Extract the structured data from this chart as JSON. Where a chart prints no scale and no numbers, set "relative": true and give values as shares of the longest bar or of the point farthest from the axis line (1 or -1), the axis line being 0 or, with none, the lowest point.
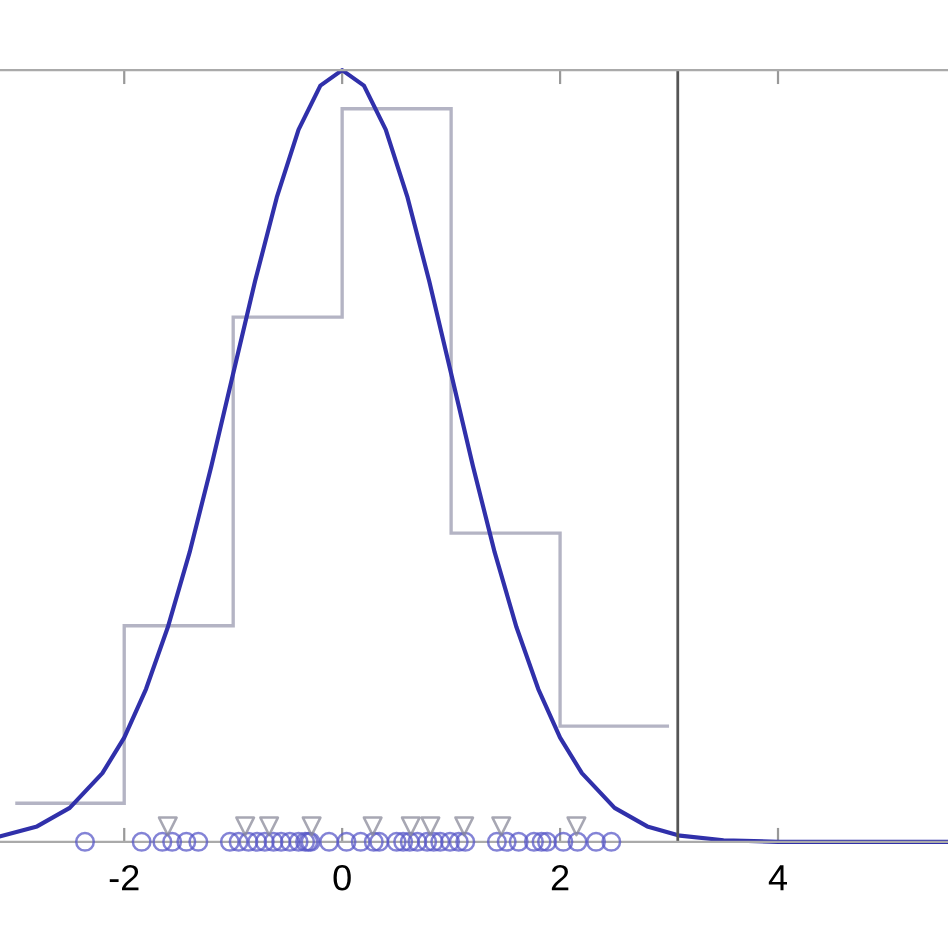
{
  "chart_data": {
    "type": "histogram",
    "relative": true,
    "bins": [
      -3,
      -2,
      -1,
      0,
      1,
      2,
      3
    ],
    "values": [
      0.05,
      0.28,
      0.68,
      0.95,
      0.4,
      0.15
    ],
    "color": "#b4b4c4",
    "xlim": [
      -3.14,
      5.56
    ],
    "xticks": [
      -2,
      0,
      2,
      4
    ],
    "tick_labels": "x",
    "grid": false,
    "ref_lines": [
      {
        "axis": "x",
        "value": 3.08,
        "color": "#555555"
      }
    ],
    "series": [
      {
        "type": "line",
        "color": "#3030aa",
        "line_style": "solid",
        "marker": "none",
        "x": [
          -3.14,
          -2.8,
          -2.5,
          -2.2,
          -2.0,
          -1.8,
          -1.6,
          -1.4,
          -1.2,
          -1.0,
          -0.8,
          -0.6,
          -0.4,
          -0.2,
          0,
          0.2,
          0.4,
          0.6,
          0.8,
          1.0,
          1.2,
          1.4,
          1.6,
          1.8,
          2.0,
          2.2,
          2.5,
          2.8,
          3.1,
          3.5,
          4.0,
          5.56
        ],
        "values": [
          0.007,
          0.02,
          0.044,
          0.089,
          0.135,
          0.198,
          0.278,
          0.375,
          0.487,
          0.607,
          0.726,
          0.835,
          0.923,
          0.98,
          1,
          0.98,
          0.923,
          0.835,
          0.726,
          0.607,
          0.487,
          0.375,
          0.278,
          0.198,
          0.135,
          0.089,
          0.044,
          0.02,
          0.008,
          0.002,
          0,
          0
        ]
      },
      {
        "type": "scatter",
        "color": "#5a5ac8",
        "marker": "circle",
        "x": [
          -2.36,
          -1.84,
          -1.65,
          -1.56,
          -1.43,
          -1.32,
          -1.03,
          -0.95,
          -0.86,
          -0.78,
          -0.71,
          -0.63,
          -0.56,
          -0.48,
          -0.4,
          -0.34,
          -0.31,
          -0.29,
          -0.12,
          0.04,
          0.17,
          0.29,
          0.34,
          0.5,
          0.56,
          0.62,
          0.69,
          0.78,
          0.84,
          0.9,
          0.99,
          1.07,
          1.13,
          1.42,
          1.51,
          1.62,
          1.76,
          1.83,
          1.88,
          2.03,
          2.16,
          2.33,
          2.47
        ],
        "values": [
          0,
          0,
          0,
          0,
          0,
          0,
          0,
          0,
          0,
          0,
          0,
          0,
          0,
          0,
          0,
          0,
          0,
          0,
          0,
          0,
          0,
          0,
          0,
          0,
          0,
          0,
          0,
          0,
          0,
          0,
          0,
          0,
          0,
          0,
          0,
          0,
          0,
          0,
          0,
          0,
          0,
          0,
          0
        ]
      },
      {
        "type": "scatter",
        "color": "#8a8a9a",
        "marker": "triangle",
        "x": [
          -1.6,
          -0.89,
          -0.67,
          -0.28,
          0.28,
          0.63,
          0.81,
          1.12,
          1.46,
          2.15
        ],
        "values": [
          0.02,
          0.02,
          0.02,
          0.02,
          0.02,
          0.02,
          0.02,
          0.02,
          0.02,
          0.02
        ]
      }
    ]
  }
}
